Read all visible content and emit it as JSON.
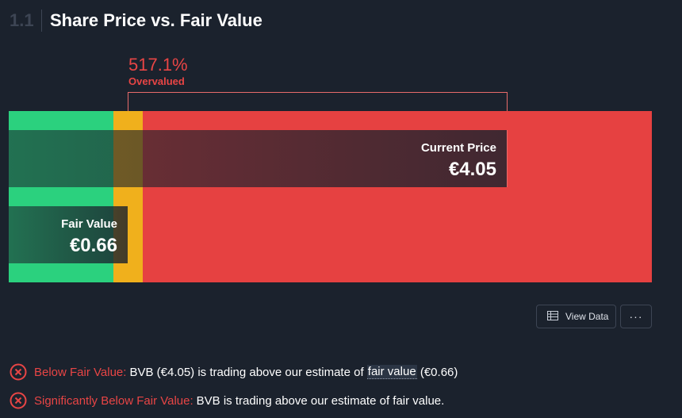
{
  "header": {
    "section_number": "1.1",
    "title": "Share Price vs. Fair Value"
  },
  "valuation": {
    "percent": "517.1%",
    "status": "Overvalued",
    "current_price_label": "Current Price",
    "current_price": "€4.05",
    "fair_value_label": "Fair Value",
    "fair_value": "€0.66"
  },
  "colors": {
    "green": "#2bd17e",
    "yellow": "#f0b01c",
    "red": "#e64141",
    "accent_red": "#e84545"
  },
  "buttons": {
    "view_data": "View Data",
    "more": "···"
  },
  "checks": [
    {
      "label": "Below Fair Value:",
      "text_before": "BVB (€4.05) is trading above our estimate of",
      "link": "fair value",
      "text_after": "(€0.66)",
      "icon": "x-circle-icon"
    },
    {
      "label": "Significantly Below Fair Value:",
      "text": "BVB is trading above our estimate of fair value.",
      "icon": "x-circle-icon"
    }
  ]
}
